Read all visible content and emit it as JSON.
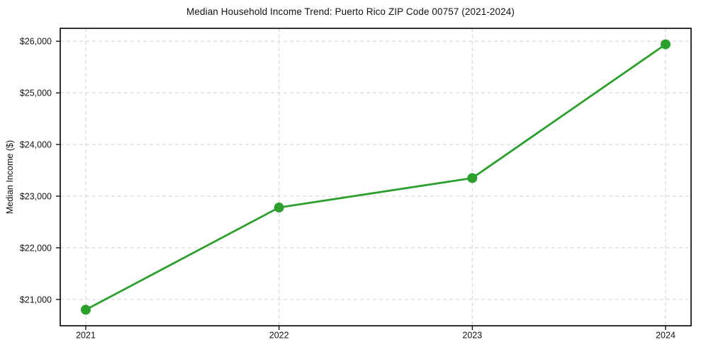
{
  "figure": {
    "background": "#ffffff"
  },
  "chart_data": {
    "type": "line",
    "title": "Median Household Income Trend: Puerto Rico ZIP Code 00757 (2021-2024)",
    "xlabel": "",
    "ylabel": "Median Income ($)",
    "categories": [
      "2021",
      "2022",
      "2023",
      "2024"
    ],
    "values": [
      20800,
      22780,
      23350,
      25940
    ],
    "ylim": [
      20490,
      26250
    ],
    "yticks": [
      21000,
      22000,
      23000,
      24000,
      25000,
      26000
    ],
    "ytick_labels": [
      "$21,000",
      "$22,000",
      "$23,000",
      "$24,000",
      "$25,000",
      "$26,000"
    ],
    "grid": true,
    "legend": false,
    "style": {
      "line_color": "#2ca02c",
      "marker_color": "#2ca02c",
      "grid_color": "#d1d1d1",
      "spine_color": "#000000",
      "tick_color": "#000000",
      "text_color": "#141414"
    }
  }
}
